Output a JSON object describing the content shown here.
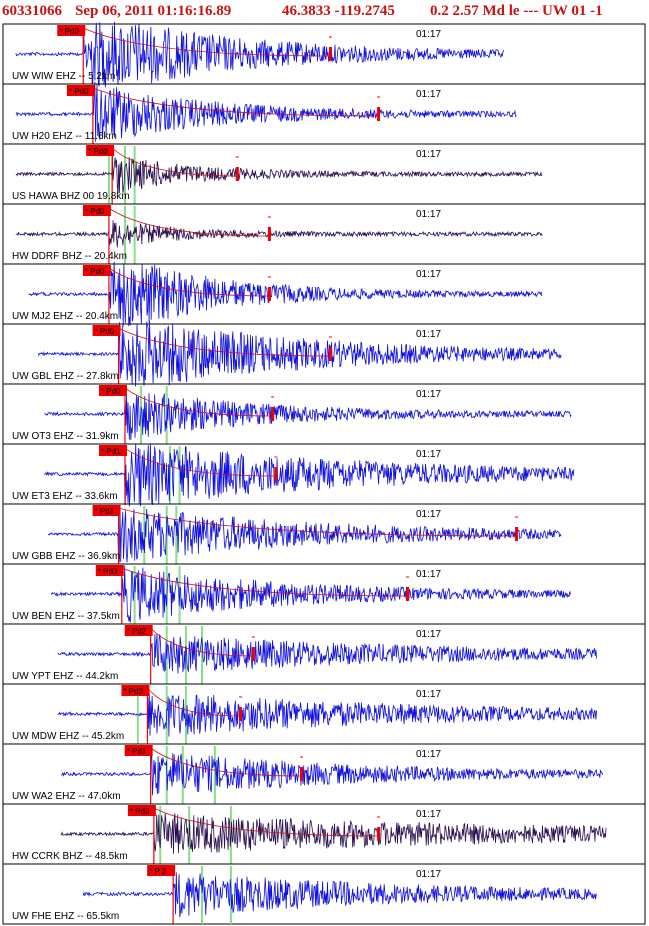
{
  "header": {
    "event_id": "60331066",
    "datetime": "Sep 06, 2011 01:16:16.89",
    "location": "46.3833 -119.2745",
    "magnitude": "0.2 2.57 Md le --- UW 01 -1"
  },
  "colors": {
    "trace": "#1010e0",
    "trace_bhz": "#2a1050",
    "pick": "#ee0000",
    "coda_fit": "#cc1111",
    "mark_line": "#88dd88",
    "border": "#000000"
  },
  "traces": [
    {
      "label": "UW WIW EHZ -- 5.2km",
      "time_mark": "01:17",
      "pick": "* Pd0",
      "start": 0.02,
      "end": 0.78,
      "p": 0.125,
      "amp": 1.6,
      "decay": 0.22,
      "coda": 0.51,
      "type": "EHZ"
    },
    {
      "label": "UW H20 EHZ -- 11.6km",
      "time_mark": "01:17",
      "pick": "* Pd0",
      "start": 0.02,
      "end": 0.8,
      "p": 0.14,
      "amp": 1.1,
      "decay": 0.18,
      "coda": 0.585,
      "type": "EHZ"
    },
    {
      "label": "US HAWA BHZ 00 19.8km",
      "time_mark": "01:17",
      "pick": "* Pd0",
      "start": 0.02,
      "end": 0.84,
      "p": 0.17,
      "amp": 0.7,
      "decay": 0.12,
      "coda": 0.365,
      "type": "BHZ"
    },
    {
      "label": "HW DDRF BHZ -- 20.4km",
      "time_mark": "01:17",
      "pick": "* Pd0",
      "start": 0.02,
      "end": 0.84,
      "p": 0.165,
      "amp": 0.5,
      "decay": 0.1,
      "coda": 0.415,
      "type": "BHZ"
    },
    {
      "label": "UW MJ2 EHZ -- 20.4km",
      "time_mark": "01:17",
      "pick": "* Pd0",
      "start": 0.04,
      "end": 0.84,
      "p": 0.165,
      "amp": 1.6,
      "decay": 0.15,
      "coda": 0.415,
      "type": "EHZ"
    },
    {
      "label": "UW GBL EHZ -- 27.8km",
      "time_mark": "01:17",
      "pick": "* Pd0",
      "start": 0.055,
      "end": 0.87,
      "p": 0.18,
      "amp": 1.4,
      "decay": 0.28,
      "coda": 0.51,
      "type": "EHZ"
    },
    {
      "label": "UW OT3 EHZ -- 31.9km",
      "time_mark": "01:17",
      "pick": "* Pd0",
      "start": 0.065,
      "end": 0.885,
      "p": 0.19,
      "amp": 0.9,
      "decay": 0.2,
      "coda": 0.42,
      "type": "EHZ"
    },
    {
      "label": "UW ET3 EHZ -- 33.6km",
      "time_mark": "01:17",
      "pick": "* Pd1",
      "start": 0.065,
      "end": 0.89,
      "p": 0.19,
      "amp": 1.2,
      "decay": 0.35,
      "coda": 0.425,
      "type": "EHZ"
    },
    {
      "label": "UW GBB EHZ -- 36.9km",
      "time_mark": "01:17",
      "pick": "* Pd1",
      "start": 0.07,
      "end": 0.87,
      "p": 0.18,
      "amp": 1.0,
      "decay": 0.3,
      "coda": 0.8,
      "type": "EHZ"
    },
    {
      "label": "UW BEN EHZ -- 37.5km",
      "time_mark": "01:17",
      "pick": "* Pd3",
      "start": 0.075,
      "end": 0.885,
      "p": 0.185,
      "amp": 1.0,
      "decay": 0.25,
      "coda": 0.63,
      "type": "EHZ"
    },
    {
      "label": "UW YPT EHZ -- 44.2km",
      "time_mark": "01:17",
      "pick": "* Pd2",
      "start": 0.085,
      "end": 0.925,
      "p": 0.23,
      "amp": 0.7,
      "decay": 0.4,
      "coda": 0.39,
      "type": "EHZ"
    },
    {
      "label": "UW MDW EHZ -- 45.2km",
      "time_mark": "01:17",
      "pick": "* Pd3",
      "start": 0.085,
      "end": 0.925,
      "p": 0.225,
      "amp": 0.8,
      "decay": 0.4,
      "coda": 0.37,
      "type": "EHZ"
    },
    {
      "label": "UW WA2 EHZ -- 47.0km",
      "time_mark": "01:17",
      "pick": "* Pd1",
      "start": 0.09,
      "end": 0.935,
      "p": 0.23,
      "amp": 0.8,
      "decay": 0.3,
      "coda": 0.465,
      "type": "EHZ"
    },
    {
      "label": "HW CCRK BHZ -- 48.5km",
      "time_mark": "01:17",
      "pick": "* Pd2",
      "start": 0.09,
      "end": 0.94,
      "p": 0.235,
      "amp": 0.7,
      "decay": 0.6,
      "coda": 0.585,
      "type": "BHZ"
    },
    {
      "label": "UW FHE EHZ -- 65.5km",
      "time_mark": "01:17",
      "pick": "* P 2",
      "start": 0.125,
      "end": 0.925,
      "p": 0.265,
      "amp": 0.8,
      "decay": 0.35,
      "coda": null,
      "type": "EHZ"
    }
  ]
}
